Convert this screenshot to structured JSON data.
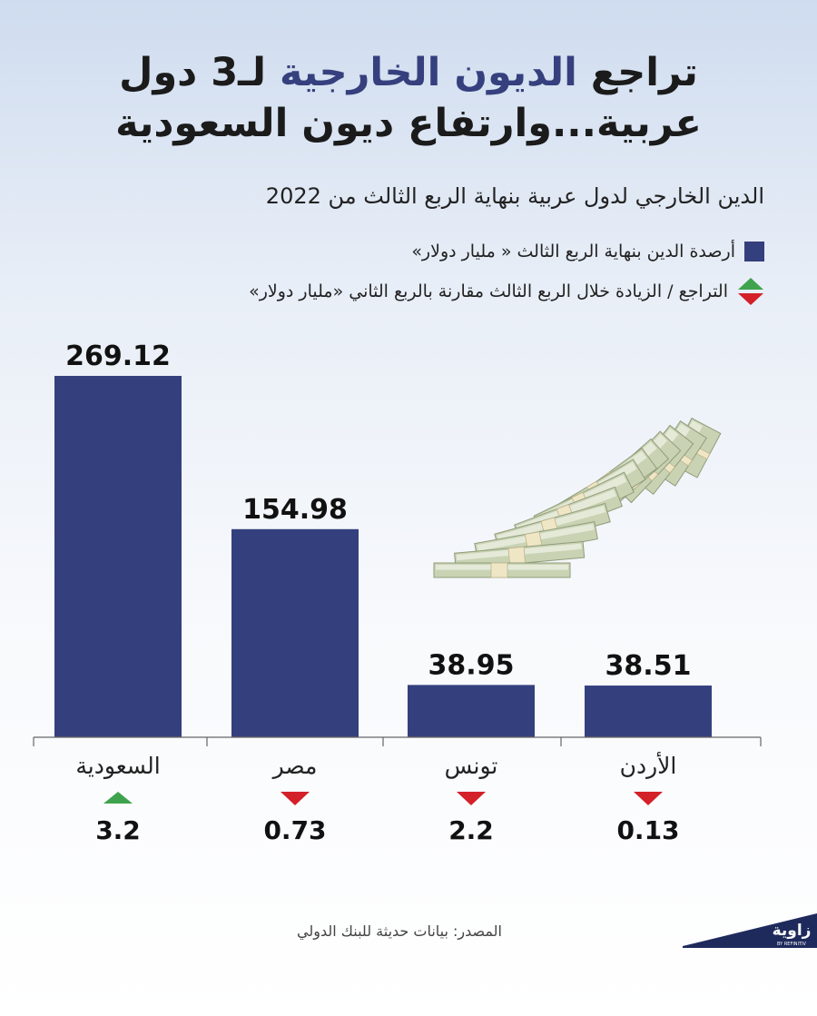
{
  "title": {
    "line1_before": "تراجع ",
    "line1_highlight": "الديون الخارجية",
    "line1_after": " لـ3 دول",
    "line2": "عربية...وارتفاع ديون السعودية"
  },
  "subtitle": "الدين الخارجي لدول عربية بنهاية الربع الثالث من 2022",
  "legend": {
    "balance_label": "أرصدة الدين بنهاية الربع الثالث « مليار دولار»",
    "change_label": "التراجع / الزيادة خلال الربع الثالث مقارنة بالربع الثاني «مليار دولار»"
  },
  "colors": {
    "bar": "#34407d",
    "increase": "#3fa34d",
    "decrease": "#d42028",
    "title_highlight": "#36407e"
  },
  "chart_data": {
    "type": "bar",
    "categories": [
      "السعودية",
      "مصر",
      "تونس",
      "الأردن"
    ],
    "values": [
      269.12,
      154.98,
      38.95,
      38.51
    ],
    "value_labels": [
      "269.12",
      "154.98",
      "38.95",
      "38.51"
    ],
    "changes": [
      3.2,
      -0.73,
      -2.2,
      -0.13
    ],
    "change_labels": [
      "3.2",
      "0.73",
      "2.2",
      "0.13"
    ],
    "change_directions": [
      "up",
      "down",
      "down",
      "down"
    ],
    "ylim": [
      0,
      269.12
    ],
    "grid": false,
    "legend_position": "top-right"
  },
  "source": "المصدر: بيانات حديثة للبنك الدولي",
  "logo": {
    "name": "زاوية",
    "tagline": "BY REFINITIV"
  }
}
